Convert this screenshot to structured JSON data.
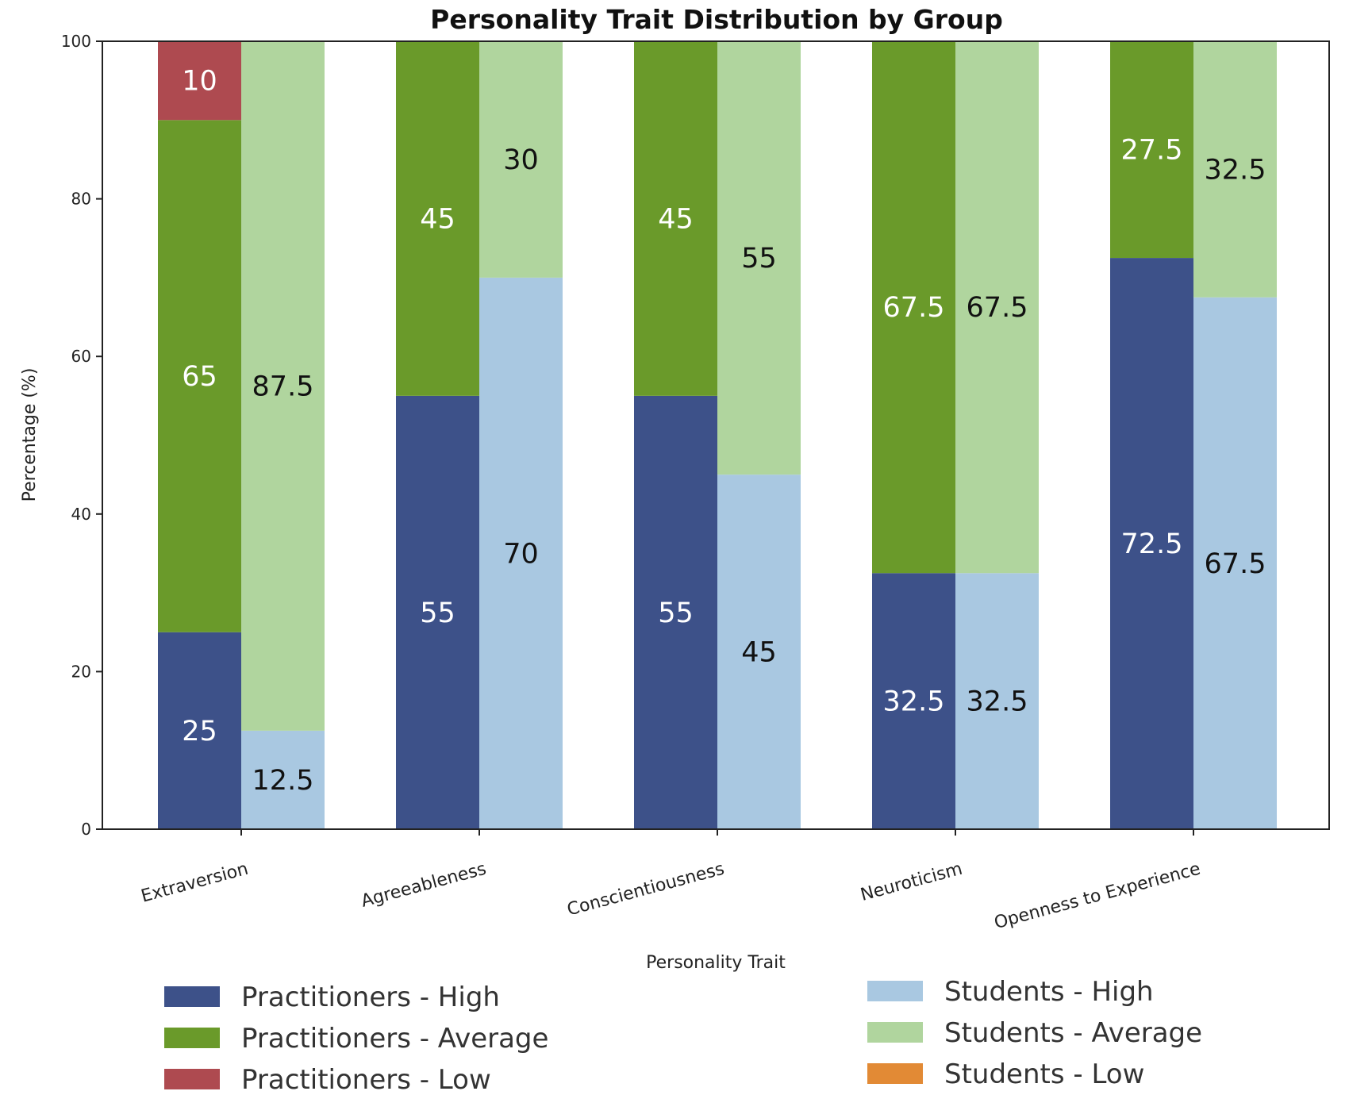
{
  "chart_data": {
    "type": "bar",
    "stacked": true,
    "title": "Personality Trait Distribution by Group",
    "xlabel": "Personality Trait",
    "ylabel": "Percentage (%)",
    "ylim": [
      0,
      100
    ],
    "yticks": [
      "0",
      "20",
      "40",
      "60",
      "80",
      "100"
    ],
    "grid": false,
    "categories": [
      "Extraversion",
      "Agreeableness",
      "Conscientiousness",
      "Neuroticism",
      "Openness to Experience"
    ],
    "groups": [
      {
        "name": "Practitioners",
        "series": [
          {
            "name": "Practitioners - High",
            "color": "#3d5189",
            "label_color": "#ffffff",
            "values": [
              25,
              55,
              55,
              32.5,
              72.5
            ],
            "labels": [
              "25",
              "55",
              "55",
              "32.5",
              "72.5"
            ]
          },
          {
            "name": "Practitioners - Average",
            "color": "#6a9a2a",
            "label_color": "#ffffff",
            "values": [
              65,
              45,
              45,
              67.5,
              27.5
            ],
            "labels": [
              "65",
              "45",
              "45",
              "67.5",
              "27.5"
            ]
          },
          {
            "name": "Practitioners - Low",
            "color": "#ae4a50",
            "label_color": "#ffffff",
            "values": [
              10,
              0,
              0,
              0,
              0
            ],
            "labels": [
              "10",
              "",
              "",
              "",
              ""
            ]
          }
        ]
      },
      {
        "name": "Students",
        "series": [
          {
            "name": "Students - High",
            "color": "#a9c8e1",
            "label_color": "#111111",
            "values": [
              12.5,
              70,
              45,
              32.5,
              67.5
            ],
            "labels": [
              "12.5",
              "70",
              "45",
              "32.5",
              "67.5"
            ]
          },
          {
            "name": "Students - Average",
            "color": "#b0d59e",
            "label_color": "#111111",
            "values": [
              87.5,
              30,
              55,
              67.5,
              32.5
            ],
            "labels": [
              "87.5",
              "30",
              "55",
              "67.5",
              "32.5"
            ]
          },
          {
            "name": "Students - Low",
            "color": "#e28a35",
            "label_color": "#111111",
            "values": [
              0,
              0,
              0,
              0,
              0
            ],
            "labels": [
              "",
              "",
              "",
              "",
              ""
            ]
          }
        ]
      }
    ],
    "legend": {
      "placement": "bottom",
      "left_column": [
        {
          "name": "Practitioners - High",
          "color": "#3d5189"
        },
        {
          "name": "Practitioners - Average",
          "color": "#6a9a2a"
        },
        {
          "name": "Practitioners - Low",
          "color": "#ae4a50"
        }
      ],
      "right_column": [
        {
          "name": "Students - High",
          "color": "#a9c8e1"
        },
        {
          "name": "Students - Average",
          "color": "#b0d59e"
        },
        {
          "name": "Students - Low",
          "color": "#e28a35"
        }
      ]
    }
  }
}
